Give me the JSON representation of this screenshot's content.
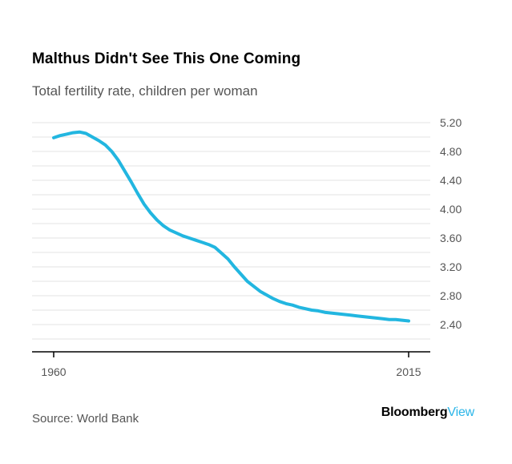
{
  "header": {
    "title": "Malthus Didn't See This One Coming",
    "subtitle": "Total fertility rate, children per woman"
  },
  "footer": {
    "source": "Source: World Bank",
    "brand_primary": "Bloomberg",
    "brand_secondary": "View"
  },
  "colors": {
    "line": "#22b6e0",
    "grid": "#e3e3e3",
    "axis": "#000000",
    "tick_text": "#555555",
    "brand_accent": "#2ab5e8"
  },
  "chart_data": {
    "type": "line",
    "title": "Malthus Didn't See This One Coming",
    "subtitle": "Total fertility rate, children per woman",
    "xlabel": "",
    "ylabel": "",
    "xlim": [
      1960,
      2015
    ],
    "ylim": [
      2.1,
      5.2
    ],
    "y_axis_side": "right",
    "grid": true,
    "legend": "none",
    "x_tick_labels": [
      "1960",
      "2015"
    ],
    "x_ticks": [
      1960,
      2015
    ],
    "y_tick_labels": [
      "2.40",
      "2.80",
      "3.20",
      "3.60",
      "4.00",
      "4.40",
      "4.80",
      "5.20"
    ],
    "y_ticks": [
      2.4,
      2.8,
      3.2,
      3.6,
      4.0,
      4.4,
      4.8,
      5.2
    ],
    "series": [
      {
        "x": [
          1960,
          1961,
          1962,
          1963,
          1964,
          1965,
          1966,
          1967,
          1968,
          1969,
          1970,
          1971,
          1972,
          1973,
          1974,
          1975,
          1976,
          1977,
          1978,
          1979,
          1980,
          1981,
          1982,
          1983,
          1984,
          1985,
          1986,
          1987,
          1988,
          1989,
          1990,
          1991,
          1992,
          1993,
          1994,
          1995,
          1996,
          1997,
          1998,
          1999,
          2000,
          2001,
          2002,
          2003,
          2004,
          2005,
          2006,
          2007,
          2008,
          2009,
          2010,
          2011,
          2012,
          2013,
          2014,
          2015
        ],
        "values": [
          4.99,
          5.02,
          5.04,
          5.06,
          5.07,
          5.05,
          5.0,
          4.95,
          4.89,
          4.8,
          4.68,
          4.53,
          4.38,
          4.22,
          4.07,
          3.95,
          3.85,
          3.77,
          3.71,
          3.67,
          3.63,
          3.6,
          3.57,
          3.54,
          3.51,
          3.47,
          3.39,
          3.31,
          3.2,
          3.1,
          3.0,
          2.93,
          2.86,
          2.81,
          2.76,
          2.72,
          2.69,
          2.67,
          2.64,
          2.62,
          2.6,
          2.59,
          2.57,
          2.56,
          2.55,
          2.54,
          2.53,
          2.52,
          2.51,
          2.5,
          2.49,
          2.48,
          2.47,
          2.47,
          2.46,
          2.45
        ]
      }
    ]
  }
}
